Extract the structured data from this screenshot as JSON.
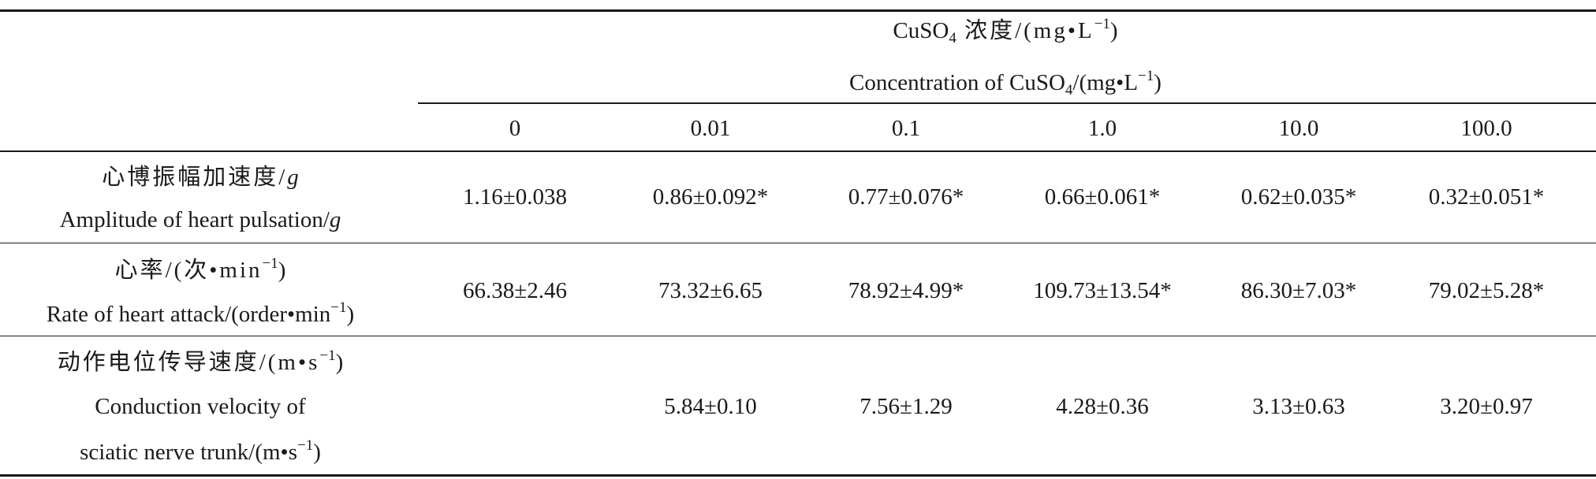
{
  "table": {
    "header": {
      "group_zh": {
        "pre": "CuSO",
        "sub": "4",
        "mid": " 浓度/(mg•L",
        "sup": "−1",
        "post": ")"
      },
      "group_en": {
        "pre": "Concentration of CuSO",
        "sub": "4",
        "mid": "/(mg•L",
        "sup": "−1",
        "post": ")"
      },
      "columns": [
        "0",
        "0.01",
        "0.1",
        "1.0",
        "10.0",
        "100.0"
      ]
    },
    "rows": [
      {
        "label_zh": {
          "text": "心博振幅加速度/",
          "unit": "g"
        },
        "label_en": {
          "text": "Amplitude of heart pulsation/",
          "unit": "g"
        },
        "values": [
          "1.16±0.038",
          "0.86±0.092*",
          "0.77±0.076*",
          "0.66±0.061*",
          "0.62±0.035*",
          "0.32±0.051*"
        ]
      },
      {
        "label_zh": {
          "pre": "心率/(次•min",
          "sup": "−1",
          "post": ")"
        },
        "label_en": {
          "pre": "Rate of heart attack/(order•min",
          "sup": "−1",
          "post": ")"
        },
        "values": [
          "66.38±2.46",
          "73.32±6.65",
          "78.92±4.99*",
          "109.73±13.54*",
          "86.30±7.03*",
          "79.02±5.28*"
        ]
      },
      {
        "label_zh": {
          "pre": "动作电位传导速度/(m•s",
          "sup": "−1",
          "post": ")"
        },
        "label_en_1": "Conduction velocity of",
        "label_en_2": {
          "pre": "sciatic nerve trunk/(m•s",
          "sup": "−1",
          "post": ")"
        },
        "values": [
          "",
          "5.84±0.10",
          "7.56±1.29",
          "4.28±0.36",
          "3.13±0.63",
          "3.20±0.97"
        ]
      }
    ]
  }
}
